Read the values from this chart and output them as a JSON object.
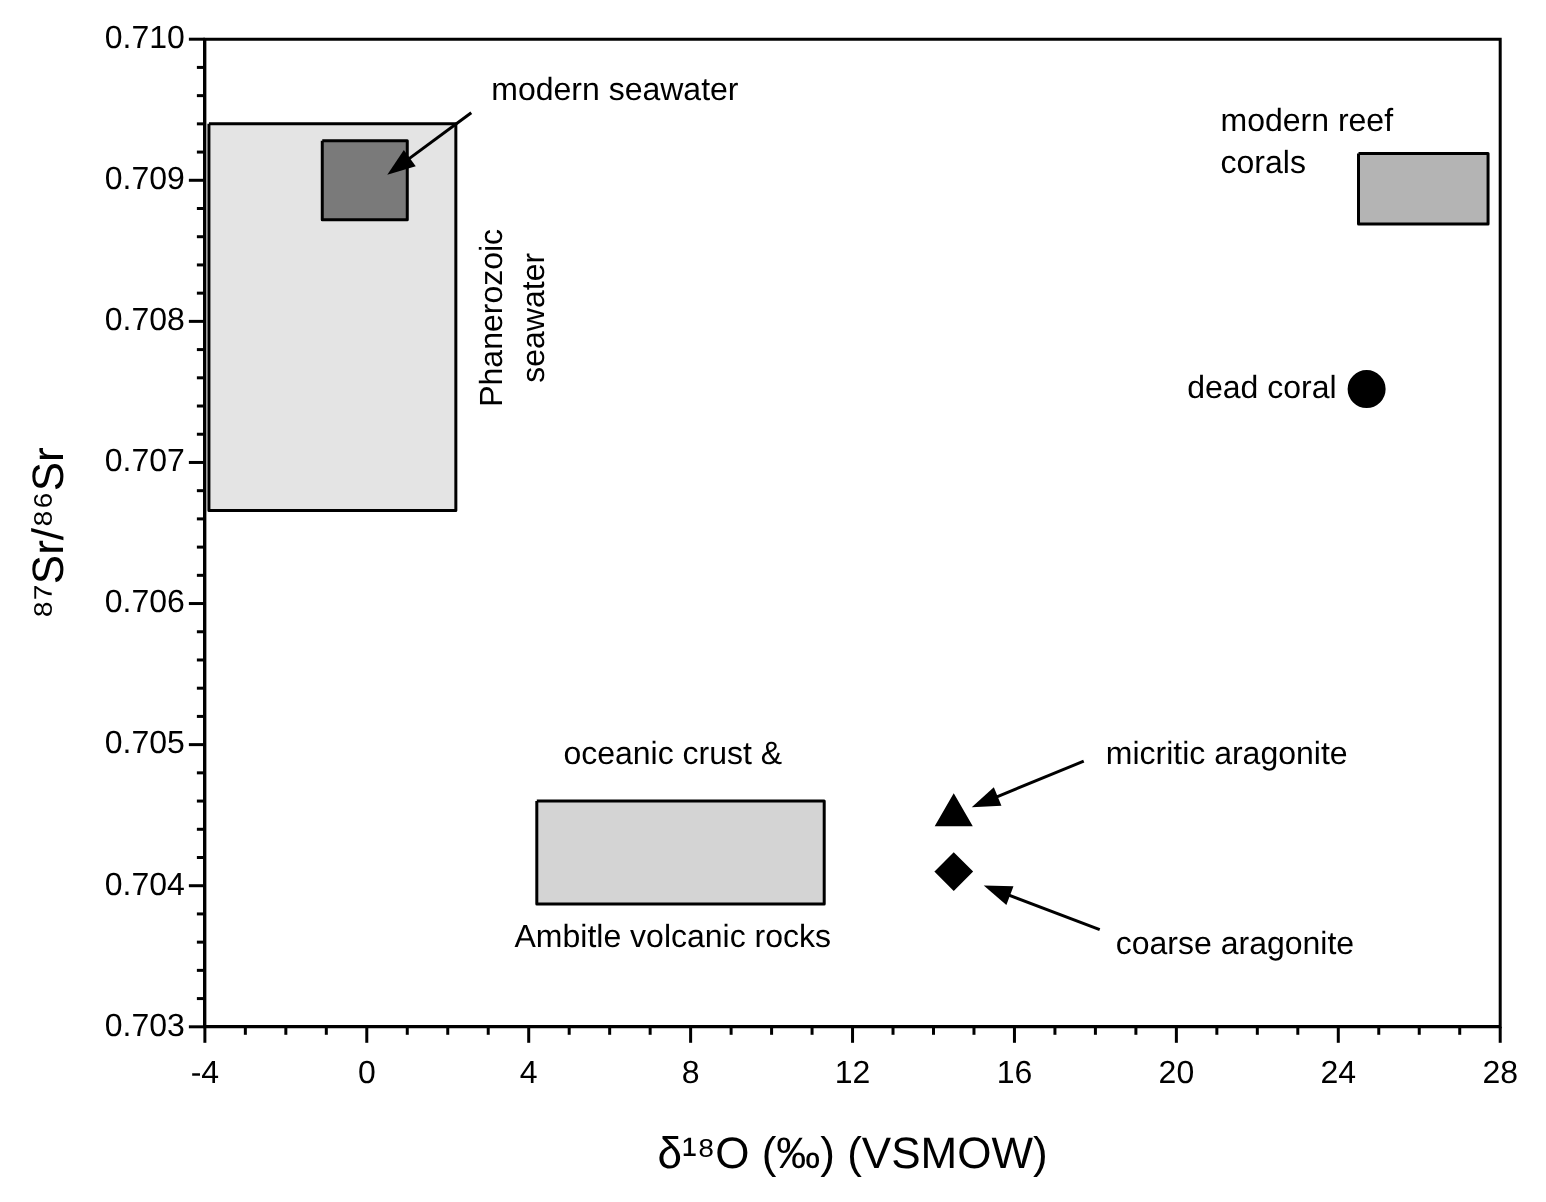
{
  "chart_data": {
    "type": "scatter",
    "xlabel": "δ¹⁸O (‰) (VSMOW)",
    "ylabel": "⁸⁷Sr/⁸⁶Sr",
    "xlim": [
      -4,
      28
    ],
    "ylim": [
      0.703,
      0.71
    ],
    "xticks": [
      -4,
      {
        "value": -3,
        "label": null
      },
      {
        "value": -2,
        "label": null
      },
      {
        "value": -1,
        "label": null
      },
      0,
      {
        "value": 1,
        "label": null
      },
      {
        "value": 2,
        "label": null
      },
      {
        "value": 3,
        "label": null
      },
      4,
      {
        "value": 5,
        "label": null
      },
      {
        "value": 6,
        "label": null
      },
      {
        "value": 7,
        "label": null
      },
      8,
      {
        "value": 9,
        "label": null
      },
      {
        "value": 10,
        "label": null
      },
      {
        "value": 11,
        "label": null
      },
      12,
      {
        "value": 13,
        "label": null
      },
      {
        "value": 14,
        "label": null
      },
      {
        "value": 15,
        "label": null
      },
      16,
      {
        "value": 17,
        "label": null
      },
      {
        "value": 18,
        "label": null
      },
      {
        "value": 19,
        "label": null
      },
      20,
      {
        "value": 21,
        "label": null
      },
      {
        "value": 22,
        "label": null
      },
      {
        "value": 23,
        "label": null
      },
      24,
      {
        "value": 25,
        "label": null
      },
      {
        "value": 26,
        "label": null
      },
      {
        "value": 27,
        "label": null
      },
      28
    ],
    "yticks": [
      0.703,
      {
        "value": 0.7032,
        "label": null
      },
      {
        "value": 0.7034,
        "label": null
      },
      {
        "value": 0.7036,
        "label": null
      },
      {
        "value": 0.7038,
        "label": null
      },
      0.704,
      {
        "value": 0.7042,
        "label": null
      },
      {
        "value": 0.7044,
        "label": null
      },
      {
        "value": 0.7046,
        "label": null
      },
      {
        "value": 0.7048,
        "label": null
      },
      0.705,
      {
        "value": 0.7052,
        "label": null
      },
      {
        "value": 0.7054,
        "label": null
      },
      {
        "value": 0.7056,
        "label": null
      },
      {
        "value": 0.7058,
        "label": null
      },
      0.706,
      {
        "value": 0.7062,
        "label": null
      },
      {
        "value": 0.7064,
        "label": null
      },
      {
        "value": 0.7066,
        "label": null
      },
      {
        "value": 0.7068,
        "label": null
      },
      0.707,
      {
        "value": 0.7072,
        "label": null
      },
      {
        "value": 0.7074,
        "label": null
      },
      {
        "value": 0.7076,
        "label": null
      },
      {
        "value": 0.7078,
        "label": null
      },
      0.708,
      {
        "value": 0.7082,
        "label": null
      },
      {
        "value": 0.7084,
        "label": null
      },
      {
        "value": 0.7086,
        "label": null
      },
      {
        "value": 0.7088,
        "label": null
      },
      0.709,
      {
        "value": 0.7092,
        "label": null
      },
      {
        "value": 0.7094,
        "label": null
      },
      {
        "value": 0.7096,
        "label": null
      },
      {
        "value": 0.7098,
        "label": null
      },
      {
        "value": 0.71,
        "label": "0.710"
      }
    ],
    "grid": false,
    "legend": false,
    "series": [
      {
        "type": "area",
        "color": "#e4e4e4",
        "x": [
          -3.9,
          2.2,
          2.2,
          -3.9,
          -3.9
        ],
        "values": [
          0.7094,
          0.7094,
          0.70666,
          0.70666,
          0.7094
        ]
      },
      {
        "type": "area",
        "color": "#7a7a7a",
        "x": [
          -1.1,
          1.0,
          1.0,
          -1.1,
          -1.1
        ],
        "values": [
          0.70928,
          0.70928,
          0.70872,
          0.70872,
          0.70928
        ]
      },
      {
        "type": "area",
        "color": "#d4d4d4",
        "x": [
          4.2,
          11.3,
          11.3,
          4.2,
          4.2
        ],
        "values": [
          0.7046,
          0.7046,
          0.70387,
          0.70387,
          0.7046
        ]
      },
      {
        "type": "area",
        "color": "#b4b4b4",
        "x": [
          24.5,
          27.7,
          27.7,
          24.5,
          24.5
        ],
        "values": [
          0.70919,
          0.70919,
          0.70869,
          0.70869,
          0.70919
        ]
      },
      {
        "type": "scatter",
        "marker": "circle",
        "color": "#000000",
        "x": [
          24.7
        ],
        "values": [
          0.70752
        ]
      },
      {
        "type": "scatter",
        "marker": "triangle",
        "color": "#000000",
        "x": [
          14.5
        ],
        "values": [
          0.7045
        ]
      },
      {
        "type": "scatter",
        "marker": "diamond",
        "color": "#000000",
        "x": [
          14.5
        ],
        "values": [
          0.7041
        ]
      }
    ],
    "annotations": [
      "modern seawater",
      "Phanerozoic\nseawater",
      "oceanic crust &",
      "Ambitle volcanic rocks",
      "modern reef\ncorals",
      "dead coral",
      "micritic aragonite",
      "coarse aragonite"
    ]
  }
}
